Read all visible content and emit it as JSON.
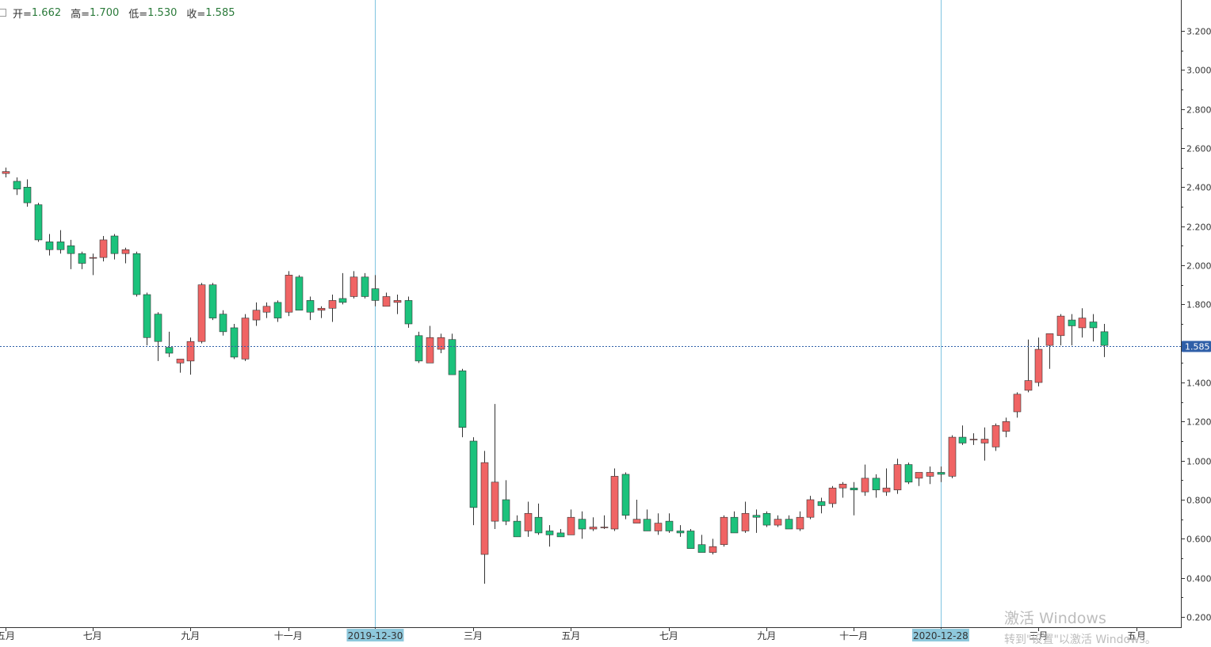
{
  "ohlc": {
    "open_label": "开=",
    "open": "1.662",
    "high_label": "高=",
    "high": "1.700",
    "low_label": "低=",
    "low": "1.530",
    "close_label": "收=",
    "close": "1.585"
  },
  "watermark": {
    "line1": "激活 Windows",
    "line2": "转到\"设置\"以激活 Windows。"
  },
  "chart_data": {
    "type": "candlestick",
    "y_ticks": [
      "0.200",
      "0.400",
      "0.600",
      "0.800",
      "1.000",
      "1.200",
      "1.400",
      "1.600",
      "1.800",
      "2.000",
      "2.200",
      "2.400",
      "2.600",
      "2.800",
      "3.000",
      "3.200"
    ],
    "y_tick_values": [
      0.2,
      0.4,
      0.6,
      0.8,
      1.0,
      1.2,
      1.4,
      1.6,
      1.8,
      2.0,
      2.2,
      2.4,
      2.6,
      2.8,
      3.0,
      3.2
    ],
    "ylim": [
      0.15,
      3.35
    ],
    "x_labels": [
      {
        "label": "五月",
        "index": 0
      },
      {
        "label": "七月",
        "index": 8
      },
      {
        "label": "九月",
        "index": 17
      },
      {
        "label": "十一月",
        "index": 26
      },
      {
        "label": "2019-12-30",
        "index": 34,
        "highlight": true
      },
      {
        "label": "三月",
        "index": 43
      },
      {
        "label": "五月",
        "index": 52
      },
      {
        "label": "七月",
        "index": 61
      },
      {
        "label": "九月",
        "index": 70
      },
      {
        "label": "十一月",
        "index": 78
      },
      {
        "label": "2020-12-28",
        "index": 86,
        "highlight": true
      },
      {
        "label": "三月",
        "index": 95
      },
      {
        "label": "五月",
        "index": 104
      }
    ],
    "vlines_at_index": [
      34,
      86
    ],
    "current_price": 1.585,
    "current_price_label": "1.585",
    "colors": {
      "up": "#f06464",
      "down": "#1cc27c",
      "wick": "#333333",
      "vline": "#7fc4e0",
      "price_line": "#2f5fa8",
      "price_tag": "#2f5fa8",
      "date_tag": "#8ec8dc"
    },
    "candles": [
      [
        2.47,
        2.5,
        2.45,
        2.48
      ],
      [
        2.43,
        2.45,
        2.36,
        2.39
      ],
      [
        2.4,
        2.44,
        2.3,
        2.32
      ],
      [
        2.31,
        2.32,
        2.12,
        2.13
      ],
      [
        2.12,
        2.16,
        2.05,
        2.08
      ],
      [
        2.12,
        2.18,
        2.06,
        2.08
      ],
      [
        2.1,
        2.13,
        1.98,
        2.06
      ],
      [
        2.06,
        2.07,
        1.98,
        2.01
      ],
      [
        2.04,
        2.06,
        1.95,
        2.04
      ],
      [
        2.04,
        2.15,
        2.02,
        2.13
      ],
      [
        2.15,
        2.16,
        2.03,
        2.06
      ],
      [
        2.06,
        2.09,
        2.01,
        2.08
      ],
      [
        2.06,
        2.07,
        1.84,
        1.85
      ],
      [
        1.85,
        1.86,
        1.59,
        1.63
      ],
      [
        1.75,
        1.76,
        1.51,
        1.61
      ],
      [
        1.58,
        1.66,
        1.53,
        1.55
      ],
      [
        1.5,
        1.52,
        1.45,
        1.52
      ],
      [
        1.51,
        1.63,
        1.44,
        1.61
      ],
      [
        1.61,
        1.91,
        1.6,
        1.9
      ],
      [
        1.9,
        1.91,
        1.72,
        1.73
      ],
      [
        1.75,
        1.77,
        1.64,
        1.66
      ],
      [
        1.68,
        1.7,
        1.52,
        1.53
      ],
      [
        1.52,
        1.75,
        1.51,
        1.73
      ],
      [
        1.72,
        1.81,
        1.69,
        1.77
      ],
      [
        1.76,
        1.81,
        1.73,
        1.79
      ],
      [
        1.81,
        1.82,
        1.71,
        1.73
      ],
      [
        1.76,
        1.97,
        1.74,
        1.95
      ],
      [
        1.94,
        1.95,
        1.78,
        1.77
      ],
      [
        1.82,
        1.84,
        1.72,
        1.76
      ],
      [
        1.77,
        1.79,
        1.73,
        1.78
      ],
      [
        1.78,
        1.85,
        1.71,
        1.82
      ],
      [
        1.83,
        1.96,
        1.8,
        1.81
      ],
      [
        1.84,
        1.97,
        1.83,
        1.94
      ],
      [
        1.94,
        1.96,
        1.83,
        1.84
      ],
      [
        1.88,
        1.95,
        1.79,
        1.82
      ],
      [
        1.79,
        1.86,
        1.79,
        1.84
      ],
      [
        1.81,
        1.85,
        1.75,
        1.82
      ],
      [
        1.82,
        1.84,
        1.68,
        1.7
      ],
      [
        1.64,
        1.66,
        1.5,
        1.51
      ],
      [
        1.5,
        1.69,
        1.51,
        1.63
      ],
      [
        1.57,
        1.65,
        1.55,
        1.63
      ],
      [
        1.62,
        1.65,
        1.44,
        1.44
      ],
      [
        1.46,
        1.47,
        1.12,
        1.17
      ],
      [
        1.1,
        1.12,
        0.67,
        0.76
      ],
      [
        0.52,
        1.05,
        0.37,
        0.99
      ],
      [
        0.69,
        1.29,
        0.65,
        0.89
      ],
      [
        0.8,
        0.9,
        0.67,
        0.69
      ],
      [
        0.69,
        0.72,
        0.61,
        0.61
      ],
      [
        0.64,
        0.79,
        0.61,
        0.73
      ],
      [
        0.71,
        0.78,
        0.62,
        0.63
      ],
      [
        0.64,
        0.67,
        0.56,
        0.62
      ],
      [
        0.63,
        0.65,
        0.61,
        0.61
      ],
      [
        0.62,
        0.75,
        0.62,
        0.71
      ],
      [
        0.7,
        0.74,
        0.6,
        0.65
      ],
      [
        0.65,
        0.71,
        0.64,
        0.66
      ],
      [
        0.66,
        0.72,
        0.65,
        0.66
      ],
      [
        0.65,
        0.96,
        0.64,
        0.92
      ],
      [
        0.93,
        0.94,
        0.7,
        0.72
      ],
      [
        0.68,
        0.8,
        0.68,
        0.7
      ],
      [
        0.7,
        0.75,
        0.64,
        0.64
      ],
      [
        0.64,
        0.73,
        0.62,
        0.68
      ],
      [
        0.69,
        0.73,
        0.63,
        0.64
      ],
      [
        0.64,
        0.67,
        0.61,
        0.63
      ],
      [
        0.64,
        0.65,
        0.57,
        0.55
      ],
      [
        0.57,
        0.62,
        0.56,
        0.53
      ],
      [
        0.53,
        0.6,
        0.52,
        0.56
      ],
      [
        0.57,
        0.72,
        0.56,
        0.71
      ],
      [
        0.71,
        0.74,
        0.63,
        0.63
      ],
      [
        0.64,
        0.79,
        0.63,
        0.73
      ],
      [
        0.72,
        0.75,
        0.63,
        0.71
      ],
      [
        0.73,
        0.74,
        0.66,
        0.67
      ],
      [
        0.67,
        0.72,
        0.66,
        0.7
      ],
      [
        0.7,
        0.72,
        0.66,
        0.65
      ],
      [
        0.65,
        0.74,
        0.64,
        0.71
      ],
      [
        0.71,
        0.82,
        0.7,
        0.8
      ],
      [
        0.79,
        0.81,
        0.73,
        0.77
      ],
      [
        0.78,
        0.87,
        0.76,
        0.86
      ],
      [
        0.86,
        0.89,
        0.81,
        0.88
      ],
      [
        0.86,
        0.89,
        0.72,
        0.85
      ],
      [
        0.84,
        0.98,
        0.82,
        0.91
      ],
      [
        0.91,
        0.93,
        0.81,
        0.85
      ],
      [
        0.84,
        0.96,
        0.82,
        0.86
      ],
      [
        0.85,
        1.01,
        0.83,
        0.98
      ],
      [
        0.98,
        0.99,
        0.88,
        0.89
      ],
      [
        0.91,
        0.94,
        0.87,
        0.94
      ],
      [
        0.92,
        0.97,
        0.88,
        0.94
      ],
      [
        0.94,
        0.97,
        0.89,
        0.93
      ],
      [
        0.92,
        1.13,
        0.91,
        1.12
      ],
      [
        1.12,
        1.18,
        1.08,
        1.09
      ],
      [
        1.11,
        1.14,
        1.08,
        1.11
      ],
      [
        1.09,
        1.17,
        1.0,
        1.11
      ],
      [
        1.07,
        1.19,
        1.05,
        1.18
      ],
      [
        1.15,
        1.22,
        1.12,
        1.2
      ],
      [
        1.25,
        1.35,
        1.22,
        1.34
      ],
      [
        1.36,
        1.62,
        1.35,
        1.41
      ],
      [
        1.4,
        1.63,
        1.38,
        1.57
      ],
      [
        1.59,
        1.65,
        1.47,
        1.65
      ],
      [
        1.64,
        1.75,
        1.59,
        1.74
      ],
      [
        1.72,
        1.75,
        1.59,
        1.69
      ],
      [
        1.68,
        1.78,
        1.63,
        1.73
      ],
      [
        1.71,
        1.75,
        1.61,
        1.68
      ],
      [
        1.66,
        1.7,
        1.53,
        1.59
      ]
    ]
  }
}
